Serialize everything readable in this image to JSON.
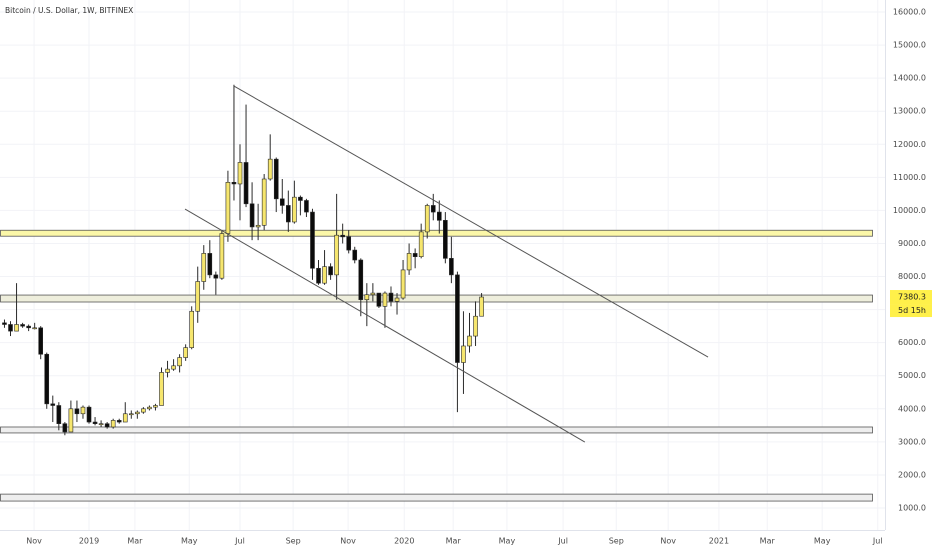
{
  "chart_data": {
    "type": "candlestick",
    "title": "Bitcoin / U.S. Dollar, 1W, BITFINEX",
    "x": [
      -13,
      -12,
      -11,
      -10,
      -9,
      -8,
      -7,
      -6,
      -5,
      -4,
      -3,
      -2,
      -1,
      0,
      1,
      2,
      3,
      4,
      5,
      6,
      7,
      8,
      9,
      10,
      11,
      12,
      13,
      14,
      15,
      16,
      17,
      18,
      19,
      20,
      21,
      22,
      23,
      24,
      25,
      26,
      27,
      28,
      29,
      30,
      31,
      32,
      33,
      34,
      35,
      36,
      37,
      38,
      39,
      40,
      41,
      42,
      43,
      44,
      45,
      46,
      47,
      48,
      49,
      50,
      51,
      52,
      53,
      54,
      55,
      56,
      57,
      58,
      59,
      60,
      61,
      62,
      63,
      64,
      65,
      66
    ],
    "open": [
      6600,
      6550,
      6350,
      6550,
      6500,
      6450,
      6450,
      5650,
      4150,
      4100,
      3550,
      3300,
      4000,
      3850,
      4050,
      3600,
      3550,
      3550,
      3450,
      3650,
      3600,
      3850,
      3850,
      3900,
      4000,
      4050,
      4100,
      5100,
      5200,
      5300,
      5550,
      5850,
      6950,
      7850,
      8700,
      8050,
      7950,
      9300,
      10850,
      10800,
      11450,
      10200,
      9500,
      9550,
      10950,
      11550,
      10350,
      10150,
      9650,
      10400,
      10300,
      9950,
      8250,
      7800,
      8300,
      8050,
      9250,
      9200,
      8800,
      8500,
      7300,
      7450,
      7500,
      7100,
      7500,
      7250,
      7350,
      8200,
      8700,
      8600,
      9350,
      10150,
      9950,
      9700,
      8550,
      8050,
      5400,
      5900,
      6200,
      6800
    ],
    "high": [
      6700,
      6650,
      7800,
      6600,
      6550,
      6600,
      6500,
      5700,
      4400,
      4200,
      3600,
      4250,
      4250,
      4100,
      4100,
      3750,
      3650,
      3600,
      3700,
      3700,
      4200,
      3950,
      3950,
      4050,
      4100,
      4150,
      5250,
      5450,
      5500,
      5650,
      5950,
      7100,
      8300,
      8950,
      9100,
      8150,
      9400,
      11200,
      13800,
      12000,
      13200,
      10850,
      10200,
      11100,
      12300,
      11600,
      10950,
      10600,
      10900,
      10450,
      10350,
      10050,
      8500,
      8800,
      8400,
      10500,
      9600,
      9400,
      8900,
      8550,
      7800,
      7800,
      7500,
      7550,
      7700,
      7500,
      8500,
      9000,
      8850,
      9600,
      10200,
      10500,
      10300,
      9950,
      9200,
      8150,
      6950,
      6900,
      7250,
      7500
    ],
    "low": [
      6450,
      6200,
      6350,
      6450,
      6350,
      6400,
      5500,
      4000,
      3600,
      3350,
      3200,
      3300,
      3600,
      3700,
      3550,
      3500,
      3450,
      3400,
      3400,
      3550,
      3600,
      3700,
      3700,
      3850,
      3950,
      3950,
      4100,
      4950,
      5150,
      5100,
      5450,
      5800,
      6600,
      7600,
      7950,
      7450,
      7900,
      9050,
      10300,
      9700,
      10100,
      9100,
      9100,
      9400,
      10900,
      9950,
      9900,
      9350,
      9600,
      9850,
      9800,
      7900,
      7750,
      7750,
      7900,
      7300,
      9000,
      8700,
      8400,
      6800,
      6500,
      7250,
      7050,
      6450,
      7100,
      6850,
      7300,
      8050,
      8250,
      8550,
      9150,
      9700,
      9300,
      8400,
      7800,
      3900,
      4450,
      5700,
      5900,
      6800
    ],
    "close": [
      6550,
      6350,
      6550,
      6500,
      6450,
      6450,
      5650,
      4150,
      4100,
      3550,
      3300,
      4000,
      3850,
      4050,
      3600,
      3550,
      3550,
      3450,
      3650,
      3600,
      3850,
      3850,
      3900,
      4000,
      4050,
      4100,
      5100,
      5200,
      5300,
      5550,
      5850,
      6950,
      7850,
      8700,
      8050,
      7950,
      9300,
      10850,
      10800,
      11450,
      10200,
      9500,
      9550,
      10950,
      11550,
      10350,
      10150,
      9650,
      10400,
      10300,
      9950,
      8250,
      7800,
      8300,
      8050,
      9250,
      9200,
      8800,
      8500,
      7300,
      7450,
      7500,
      7100,
      7500,
      7250,
      7350,
      8200,
      8700,
      8600,
      9350,
      10150,
      9950,
      9700,
      8550,
      8050,
      5400,
      5900,
      6200,
      6800,
      7380.3
    ],
    "up_color": "#f6e66e",
    "down_color": "#0b0b0b",
    "wick_color": "#2a2a2a",
    "xlim": [
      -13.74,
      132.8
    ],
    "xticks": [
      {
        "value": -8.1,
        "label": "Nov"
      },
      {
        "value": 1,
        "label": "2019"
      },
      {
        "value": 8.6,
        "label": "Mar"
      },
      {
        "value": 17.6,
        "label": "May"
      },
      {
        "value": 26,
        "label": "Jul"
      },
      {
        "value": 34.8,
        "label": "Sep"
      },
      {
        "value": 43.9,
        "label": "Nov"
      },
      {
        "value": 53.2,
        "label": "2020"
      },
      {
        "value": 61.3,
        "label": "Mar"
      },
      {
        "value": 70.2,
        "label": "May"
      },
      {
        "value": 79.5,
        "label": "Jul"
      },
      {
        "value": 88.3,
        "label": "Sep"
      },
      {
        "value": 96.9,
        "label": "Nov"
      },
      {
        "value": 105.3,
        "label": "2021"
      },
      {
        "value": 113.3,
        "label": "Mar"
      },
      {
        "value": 122.4,
        "label": "May"
      },
      {
        "value": 131.6,
        "label": "Jul"
      }
    ],
    "ylim": [
      335,
      16363
    ],
    "yticks": [
      {
        "value": 1000,
        "label": "1000.0"
      },
      {
        "value": 2000,
        "label": "2000.0"
      },
      {
        "value": 3000,
        "label": "3000.0"
      },
      {
        "value": 4000,
        "label": "4000.0"
      },
      {
        "value": 5000,
        "label": "5000.0"
      },
      {
        "value": 6000,
        "label": "6000.0"
      },
      {
        "value": 7000,
        "label": "7000.0"
      },
      {
        "value": 8000,
        "label": "8000.0"
      },
      {
        "value": 9000,
        "label": "9000.0"
      },
      {
        "value": 10000,
        "label": "10000.0"
      },
      {
        "value": 11000,
        "label": "11000.0"
      },
      {
        "value": 12000,
        "label": "12000.0"
      },
      {
        "value": 13000,
        "label": "13000.0"
      },
      {
        "value": 14000,
        "label": "14000.0"
      },
      {
        "value": 15000,
        "label": "15000.0"
      },
      {
        "value": 16000,
        "label": "16000.0"
      }
    ],
    "grid": true,
    "zones": [
      {
        "from": 9220,
        "to": 9400,
        "color": "#fbf7a8"
      },
      {
        "from": 7230,
        "to": 7440,
        "color": "#eeeedc"
      },
      {
        "from": 3270,
        "to": 3450,
        "color": "#eeeeee"
      },
      {
        "from": 1210,
        "to": 1420,
        "color": "#eeeeee"
      }
    ],
    "trendlines": [
      {
        "x": [
          25,
          103.5
        ],
        "y": [
          13760,
          5566
        ]
      },
      {
        "x": [
          16.9,
          83.1
        ],
        "y": [
          10040,
          2996
        ]
      }
    ],
    "last_price_color": "#fff04a",
    "countdown": "5d 15h"
  }
}
